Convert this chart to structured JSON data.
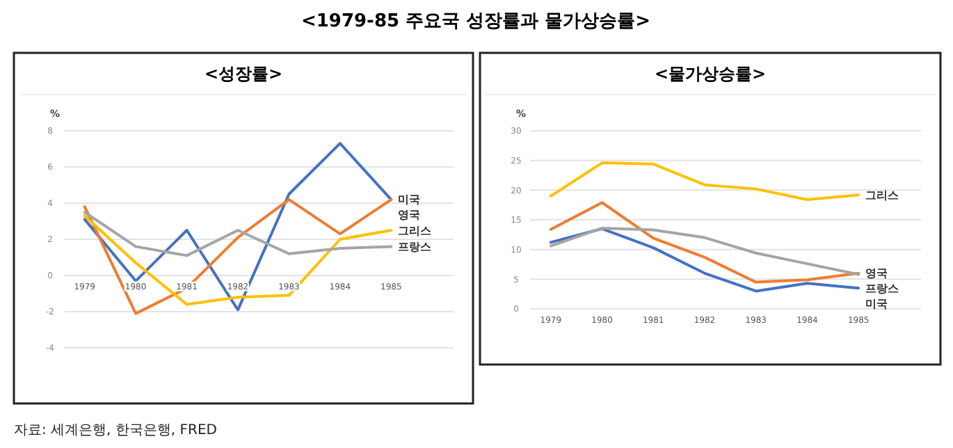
{
  "chart_data": [
    {
      "type": "other",
      "title": "<1979-85 주요국 성장률과 물가상승률>",
      "annotations": [
        "자료: 세계은행, 한국은행, FRED"
      ]
    },
    {
      "type": "line",
      "title": "<성장률>",
      "ylabel": "%",
      "categories": [
        "1979",
        "1980",
        "1981",
        "1982",
        "1983",
        "1984",
        "1985"
      ],
      "ylim": [
        -4,
        8
      ],
      "yticks": [
        -4,
        -2,
        0,
        2,
        4,
        6,
        8
      ],
      "grid": "y",
      "legend": false,
      "marker": "none",
      "line_style": "solid",
      "series": [
        {
          "name": "미국",
          "color": "#4472c4",
          "values": [
            3.1,
            -0.3,
            2.5,
            -1.9,
            4.5,
            7.3,
            4.2
          ]
        },
        {
          "name": "영국",
          "color": "#ed7d31",
          "values": [
            3.8,
            -2.1,
            -0.7,
            2.1,
            4.2,
            2.3,
            4.2
          ]
        },
        {
          "name": "그리스",
          "color": "#ffc000",
          "values": [
            3.3,
            0.7,
            -1.6,
            -1.2,
            -1.1,
            2.0,
            2.5
          ]
        },
        {
          "name": "프랑스",
          "color": "#a5a5a5",
          "values": [
            3.5,
            1.6,
            1.1,
            2.5,
            1.2,
            1.5,
            1.6
          ]
        }
      ]
    },
    {
      "type": "line",
      "title": "<물가상승률>",
      "ylabel": "%",
      "categories": [
        "1979",
        "1980",
        "1981",
        "1982",
        "1983",
        "1984",
        "1985"
      ],
      "ylim": [
        0,
        30
      ],
      "yticks": [
        0,
        5,
        10,
        15,
        20,
        25,
        30
      ],
      "grid": "y",
      "legend": false,
      "marker": "none",
      "line_style": "solid",
      "series": [
        {
          "name": "미국",
          "color": "#4472c4",
          "values": [
            11.2,
            13.5,
            10.3,
            6.0,
            3.0,
            4.3,
            3.5
          ]
        },
        {
          "name": "영국",
          "color": "#ed7d31",
          "values": [
            13.4,
            17.9,
            11.9,
            8.7,
            4.5,
            4.9,
            6.0
          ]
        },
        {
          "name": "그리스",
          "color": "#ffc000",
          "values": [
            19.0,
            24.6,
            24.4,
            20.9,
            20.2,
            18.4,
            19.2
          ]
        },
        {
          "name": "프랑스",
          "color": "#a5a5a5",
          "values": [
            10.6,
            13.6,
            13.3,
            12.0,
            9.4,
            7.6,
            5.8
          ]
        }
      ]
    }
  ]
}
